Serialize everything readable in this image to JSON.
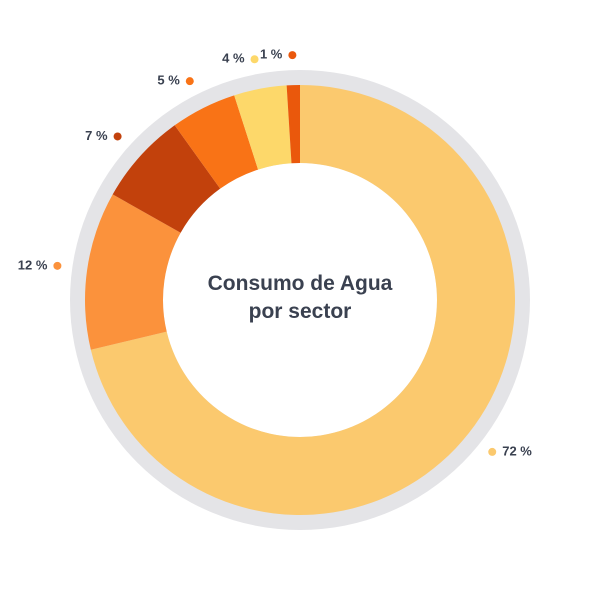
{
  "chart_data": {
    "type": "donut",
    "title": "Consumo de Agua por sector",
    "values": [
      72,
      12,
      7,
      5,
      4,
      1
    ],
    "value_labels": [
      "72 %",
      "12 %",
      "7 %",
      "5 %",
      "4 %",
      "1 %"
    ],
    "colors": [
      "#fbc96e",
      "#fb923c",
      "#c2410c",
      "#f97316",
      "#fdd86a",
      "#ea580c"
    ]
  }
}
